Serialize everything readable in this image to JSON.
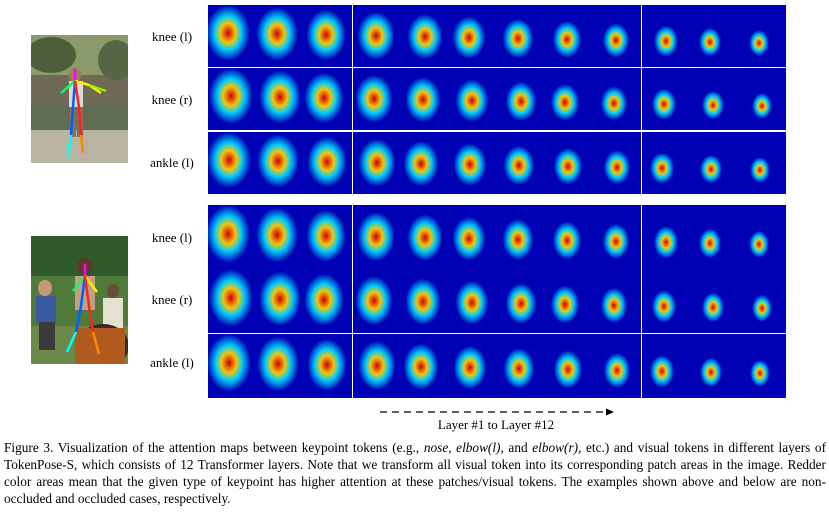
{
  "figure": {
    "rows_top": [
      "knee (l)",
      "knee (r)",
      "ankle (l)"
    ],
    "rows_bottom": [
      "knee (l)",
      "knee (r)",
      "ankle (l)"
    ],
    "layer_axis_label": "Layer #1 to Layer #12",
    "layers": 12,
    "caption": {
      "part1": "Figure 3. Visualization of the attention maps between keypoint tokens (e.g., ",
      "nose": "nose",
      "sep1": ", ",
      "elbow_l": "elbow(l)",
      "sep2": ", and ",
      "elbow_r": "elbow(r)",
      "part2": ", etc.) and visual tokens in different layers of TokenPose-S, which consists of 12 Transformer layers. Note that we transform all visual token into its corresponding patch areas in the image. Redder color areas mean that the given type of keypoint has higher attention at these patches/visual tokens. The examples shown above and below are non-occluded and occluded cases, respectively."
    },
    "colors": {
      "heat_low": "#0000b4",
      "heat_mid": "#00d8ff",
      "heat_high": "#d80000"
    }
  }
}
